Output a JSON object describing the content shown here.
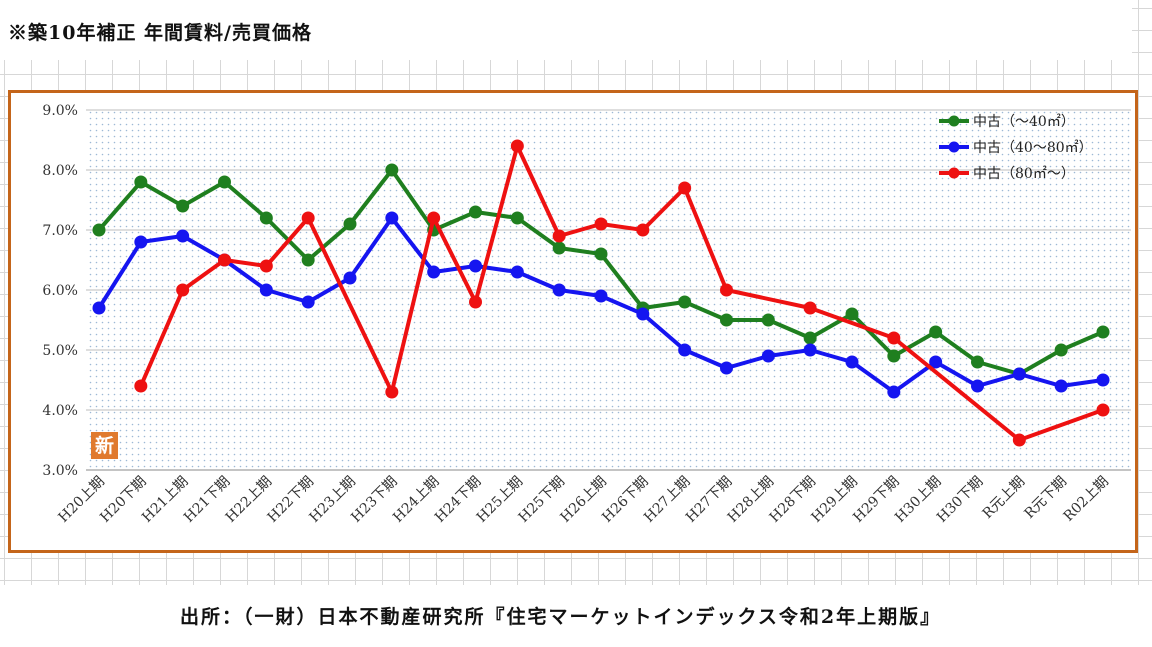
{
  "title": "※築10年補正 年間賃料/売買価格",
  "source": "出所：（一財）日本不動産研究所『住宅マーケットインデックス令和2年上期版』",
  "badge": "新",
  "chart_data": {
    "type": "line",
    "categories": [
      "H20上期",
      "H20下期",
      "H21上期",
      "H21下期",
      "H22上期",
      "H22下期",
      "H23上期",
      "H23下期",
      "H24上期",
      "H24下期",
      "H25上期",
      "H25下期",
      "H26上期",
      "H26下期",
      "H27上期",
      "H27下期",
      "H28上期",
      "H28下期",
      "H29上期",
      "H29下期",
      "H30上期",
      "H30下期",
      "R元上期",
      "R元下期",
      "R02上期"
    ],
    "ylim": [
      3.0,
      9.0
    ],
    "yticks": [
      "3.0%",
      "4.0%",
      "5.0%",
      "6.0%",
      "7.0%",
      "8.0%",
      "9.0%"
    ],
    "grid": true,
    "legend_position": "top-right",
    "series": [
      {
        "name": "中古（～40㎡）",
        "color": "#1f7f1f",
        "values": [
          7.0,
          7.8,
          7.4,
          7.8,
          7.2,
          6.5,
          7.1,
          8.0,
          7.0,
          7.3,
          7.2,
          6.7,
          6.6,
          5.7,
          5.8,
          5.5,
          5.5,
          5.2,
          5.6,
          4.9,
          5.3,
          4.8,
          4.6,
          5.0,
          5.3
        ]
      },
      {
        "name": "中古（40～80㎡）",
        "color": "#1515f0",
        "values": [
          5.7,
          6.8,
          6.9,
          6.5,
          6.0,
          5.8,
          6.2,
          7.2,
          6.3,
          6.4,
          6.3,
          6.0,
          5.9,
          5.6,
          5.0,
          4.7,
          4.9,
          5.0,
          4.8,
          4.3,
          4.8,
          4.4,
          4.6,
          4.4,
          4.5
        ]
      },
      {
        "name": "中古（80㎡～）",
        "color": "#ee1111",
        "values": [
          null,
          4.4,
          6.0,
          6.5,
          6.4,
          7.2,
          null,
          4.3,
          7.2,
          5.8,
          8.4,
          6.9,
          7.1,
          7.0,
          7.7,
          6.0,
          null,
          5.7,
          null,
          5.2,
          null,
          null,
          3.5,
          null,
          4.0
        ]
      }
    ]
  }
}
